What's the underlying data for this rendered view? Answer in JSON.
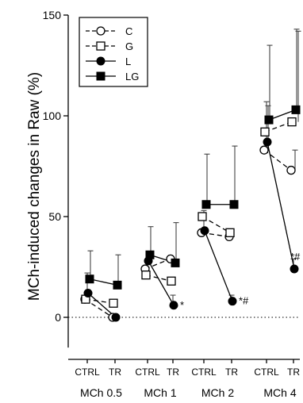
{
  "chart_data": {
    "type": "line",
    "ylabel": "MCh-induced changes in Raw (%)",
    "ylim": [
      -15,
      150
    ],
    "yticks": [
      0,
      50,
      100,
      150
    ],
    "reference_line_y": 0,
    "x_ticks": [
      "CTRL",
      "TR",
      "CTRL",
      "TR",
      "CTRL",
      "TR",
      "CTRL",
      "TR"
    ],
    "groups": [
      "MCh 0.5",
      "MCh 1",
      "MCh 2",
      "MCh 4"
    ],
    "legend": {
      "placement": "top-left"
    },
    "series": [
      {
        "name": "C",
        "marker": "open-circle",
        "line": "dashed",
        "values": [
          [
            9,
            0
          ],
          [
            24,
            29
          ],
          [
            42,
            40
          ],
          [
            83,
            73
          ]
        ],
        "errors": [
          [
            null,
            null
          ],
          [
            null,
            null
          ],
          [
            null,
            null
          ],
          [
            22,
            10
          ]
        ]
      },
      {
        "name": "G",
        "marker": "open-square",
        "line": "dashed",
        "values": [
          [
            9,
            7
          ],
          [
            21,
            18
          ],
          [
            50,
            42
          ],
          [
            92,
            97
          ]
        ],
        "errors": [
          [
            null,
            null
          ],
          [
            null,
            null
          ],
          [
            null,
            null
          ],
          [
            null,
            45
          ]
        ]
      },
      {
        "name": "L",
        "marker": "filled-circle",
        "line": "solid",
        "values": [
          [
            12,
            0
          ],
          [
            28,
            6
          ],
          [
            43,
            8
          ],
          [
            87,
            24
          ]
        ],
        "errors": [
          [
            10,
            null
          ],
          [
            null,
            5
          ],
          [
            10,
            3
          ],
          [
            20,
            5
          ]
        ]
      },
      {
        "name": "LG",
        "marker": "filled-square",
        "line": "solid",
        "values": [
          [
            19,
            16
          ],
          [
            31,
            27
          ],
          [
            56,
            56
          ],
          [
            98,
            103
          ]
        ],
        "errors": [
          [
            14,
            15
          ],
          [
            14,
            20
          ],
          [
            25,
            29
          ],
          [
            37,
            40
          ]
        ]
      }
    ],
    "annotations": [
      {
        "text": "*",
        "group": 1,
        "position": "TR"
      },
      {
        "text": "*#",
        "group": 2,
        "position": "TR"
      },
      {
        "text": "*#",
        "group": 3,
        "position": "TR"
      }
    ]
  }
}
